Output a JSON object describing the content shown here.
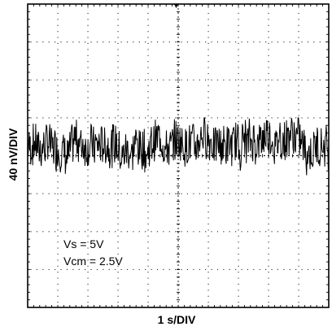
{
  "chart_data": {
    "type": "line",
    "title": "",
    "xlabel": "1 s/DIV",
    "ylabel": "40 nV/DIV",
    "grid": true,
    "x_divisions": 10,
    "y_divisions": 8,
    "xlim": [
      0,
      10
    ],
    "ylim": [
      -4,
      4
    ],
    "x_unit": "s",
    "y_unit": "div (40 nV/div)",
    "annotations": [
      "Vs = 5V",
      "Vcm = 2.5V"
    ],
    "series": [
      {
        "color": "#000000",
        "seed": 7,
        "point_count": 600,
        "offset_div": 0.35,
        "noise_amplitude_div": 0.55,
        "envelope_div": [
          -0.55,
          1.0
        ]
      }
    ]
  }
}
